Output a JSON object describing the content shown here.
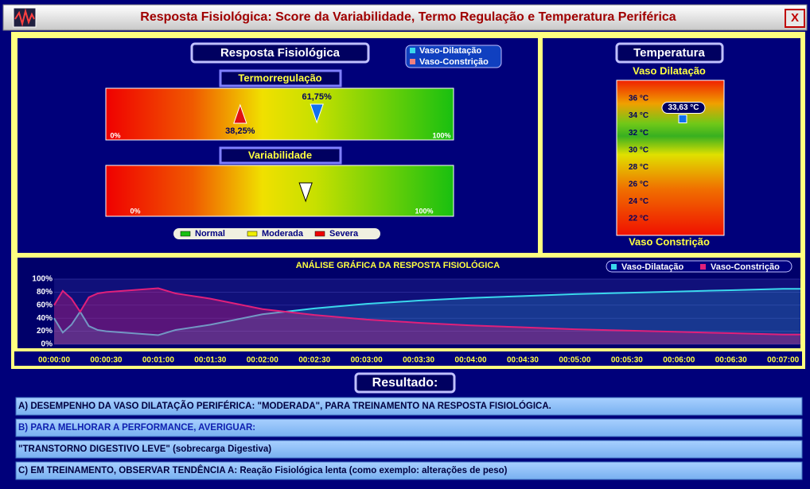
{
  "window": {
    "title": "Resposta Fisiológica: Score da Variabilidade, Termo Regulação e Temperatura Periférica",
    "close": "X"
  },
  "physiological_response": {
    "title": "Resposta Fisiológica",
    "legend": [
      "Vaso-Dilatação",
      "Vaso-Constrição"
    ],
    "thermoregulation": {
      "title": "Termorregulação",
      "ticks": [
        {
          "value": 0,
          "label": "0%"
        },
        {
          "value": 100,
          "label": "100%"
        }
      ],
      "constriction": {
        "value": 38.25,
        "label": "38,25%"
      },
      "dilation": {
        "value": 61.75,
        "label": "61,75%"
      }
    },
    "variability": {
      "title": "Variabilidade",
      "ticks": [
        {
          "value": 0,
          "label": "0%"
        },
        {
          "value": 100,
          "label": "100%"
        }
      ],
      "value": 59
    },
    "scale_legend": [
      "Normal",
      "Moderada",
      "Severa"
    ]
  },
  "temperature": {
    "title": "Temperatura",
    "top_label": "Vaso Dilatação",
    "bottom_label": "Vaso Constrição",
    "ticks": [
      {
        "value": 36,
        "label": "36 °C"
      },
      {
        "value": 34,
        "label": "34 °C"
      },
      {
        "value": 32,
        "label": "32 °C"
      },
      {
        "value": 30,
        "label": "30 °C"
      },
      {
        "value": 28,
        "label": "28 °C"
      },
      {
        "value": 26,
        "label": "26 °C"
      },
      {
        "value": 24,
        "label": "24 °C"
      },
      {
        "value": 22,
        "label": "22 °C"
      }
    ],
    "value": 33.63,
    "value_label": "33,63 °C"
  },
  "chart_data": {
    "type": "area",
    "title": "ANÁLISE GRÁFICA DA RESPOSTA FISIOLÓGICA",
    "x": [
      0,
      5,
      10,
      15,
      20,
      25,
      30,
      40,
      50,
      60,
      70,
      80,
      90,
      105,
      120,
      150,
      180,
      210,
      240,
      270,
      300,
      330,
      360,
      390,
      420,
      430
    ],
    "xlim": [
      0,
      430
    ],
    "xticks": [
      {
        "value": 0,
        "label": "00:00:00"
      },
      {
        "value": 30,
        "label": "00:00:30"
      },
      {
        "value": 60,
        "label": "00:01:00"
      },
      {
        "value": 90,
        "label": "00:01:30"
      },
      {
        "value": 120,
        "label": "00:02:00"
      },
      {
        "value": 150,
        "label": "00:02:30"
      },
      {
        "value": 180,
        "label": "00:03:00"
      },
      {
        "value": 210,
        "label": "00:03:30"
      },
      {
        "value": 240,
        "label": "00:04:00"
      },
      {
        "value": 270,
        "label": "00:04:30"
      },
      {
        "value": 300,
        "label": "00:05:00"
      },
      {
        "value": 330,
        "label": "00:05:30"
      },
      {
        "value": 360,
        "label": "00:06:00"
      },
      {
        "value": 390,
        "label": "00:06:30"
      },
      {
        "value": 420,
        "label": "00:07:00"
      }
    ],
    "ylim": [
      0,
      100
    ],
    "yticks": [
      {
        "value": 0,
        "label": "0%"
      },
      {
        "value": 20,
        "label": "20%"
      },
      {
        "value": 40,
        "label": "40%"
      },
      {
        "value": 60,
        "label": "60%"
      },
      {
        "value": 80,
        "label": "80%"
      },
      {
        "value": 100,
        "label": "100%"
      }
    ],
    "grid": true,
    "series": [
      {
        "name": "Vaso-Dilatação",
        "color": "#3ad8ec",
        "values": [
          40,
          18,
          30,
          50,
          28,
          22,
          20,
          18,
          16,
          14,
          22,
          26,
          30,
          38,
          46,
          55,
          62,
          67,
          71,
          74,
          77,
          79,
          81,
          83,
          85,
          85
        ]
      },
      {
        "name": "Vaso-Constrição",
        "color": "#e0207a",
        "values": [
          60,
          82,
          70,
          50,
          72,
          78,
          80,
          82,
          84,
          86,
          78,
          74,
          70,
          62,
          54,
          45,
          38,
          33,
          29,
          26,
          23,
          21,
          19,
          17,
          15,
          15
        ]
      }
    ]
  },
  "result": {
    "title": "Resultado:",
    "lines": [
      "A) DESEMPENHO DA VASO DILATAÇÃO PERIFÉRICA: \"MODERADA\", PARA TREINAMENTO NA RESPOSTA FISIOLÓGICA.",
      "B) PARA MELHORAR A PERFORMANCE, AVERIGUAR:",
      "\"TRANSTORNO DIGESTIVO LEVE\" (sobrecarga Digestiva)",
      "C) EM TREINAMENTO, OBSERVAR TENDÊNCIA A: Reação Fisiológica lenta (como exemplo: alterações de peso)"
    ]
  }
}
